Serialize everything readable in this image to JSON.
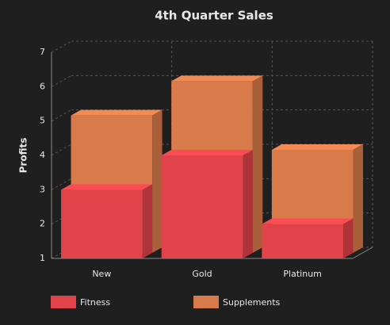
{
  "chart_data": {
    "type": "bar3d",
    "title": "4th Quarter Sales",
    "y_label": "Profits",
    "categories": [
      "New",
      "Gold",
      "Platinum"
    ],
    "series": [
      {
        "name": "Fitness",
        "color": "#e0434a",
        "values": [
          3,
          4,
          2
        ]
      },
      {
        "name": "Supplements",
        "color": "#d97a4a",
        "values": [
          5,
          6,
          4
        ]
      }
    ],
    "ylim": [
      1,
      7
    ],
    "yticks": [
      1,
      2,
      3,
      4,
      5,
      6,
      7
    ],
    "grid": true
  }
}
